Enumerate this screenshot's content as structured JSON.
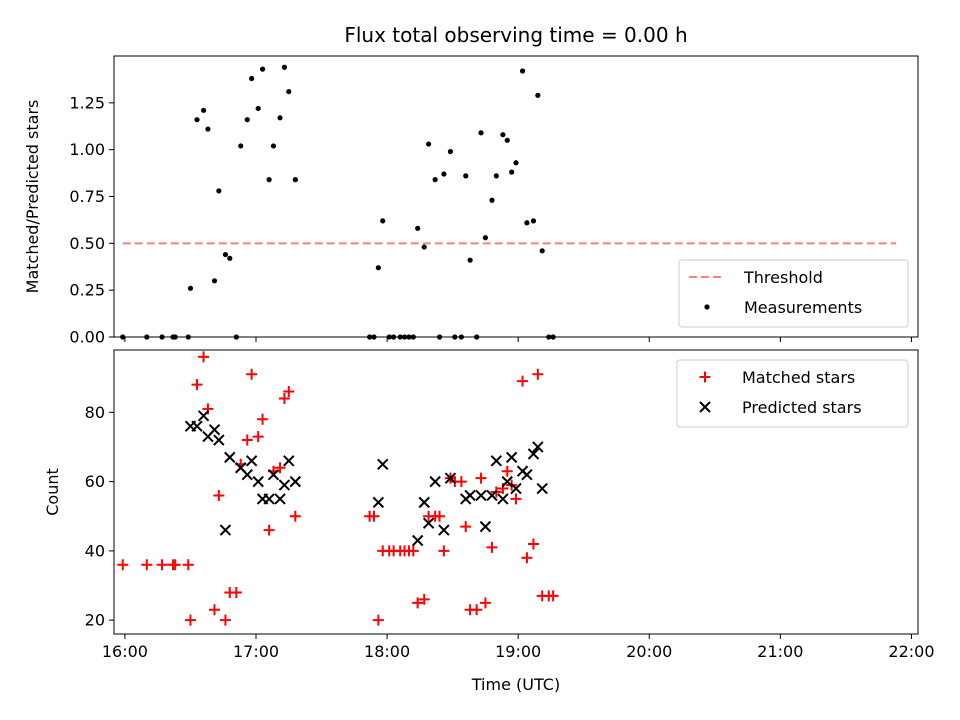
{
  "title": "Flux total observing time = 0.00 h",
  "xlabel": "Time (UTC)",
  "x_ticks": [
    "16:00",
    "17:00",
    "18:00",
    "19:00",
    "20:00",
    "21:00",
    "22:00"
  ],
  "colors": {
    "measurements": "#000000",
    "threshold": "#ff7f7f",
    "matched": "#ff0000",
    "predicted": "#000000"
  },
  "chart_data": [
    {
      "type": "scatter",
      "ylabel": "Matched/Predicted stars",
      "xlim": [
        "15:55",
        "22:03"
      ],
      "ylim": [
        0,
        1.5
      ],
      "y_ticks": [
        "0.00",
        "0.25",
        "0.50",
        "0.75",
        "1.00",
        "1.25"
      ],
      "legend_position": "lower-right",
      "threshold": {
        "name": "Threshold",
        "value": 0.5,
        "x": [
          "15:59",
          "21:53"
        ]
      },
      "series": [
        {
          "name": "Measurements",
          "marker": "dot",
          "points": [
            [
              "15:59",
              0.0
            ],
            [
              "16:10",
              0.0
            ],
            [
              "16:17",
              0.0
            ],
            [
              "16:22",
              0.0
            ],
            [
              "16:23",
              0.0
            ],
            [
              "16:29",
              0.0
            ],
            [
              "16:30",
              0.26
            ],
            [
              "16:33",
              1.16
            ],
            [
              "16:36",
              1.21
            ],
            [
              "16:38",
              1.11
            ],
            [
              "16:41",
              0.3
            ],
            [
              "16:43",
              0.78
            ],
            [
              "16:46",
              0.44
            ],
            [
              "16:48",
              0.42
            ],
            [
              "16:51",
              0.0
            ],
            [
              "16:53",
              1.02
            ],
            [
              "16:56",
              1.16
            ],
            [
              "16:58",
              1.38
            ],
            [
              "17:01",
              1.22
            ],
            [
              "17:03",
              1.43
            ],
            [
              "17:06",
              0.84
            ],
            [
              "17:08",
              1.02
            ],
            [
              "17:11",
              1.17
            ],
            [
              "17:13",
              1.44
            ],
            [
              "17:15",
              1.31
            ],
            [
              "17:18",
              0.84
            ],
            [
              "17:52",
              0.0
            ],
            [
              "17:54",
              0.0
            ],
            [
              "17:56",
              0.37
            ],
            [
              "17:58",
              0.62
            ],
            [
              "18:01",
              0.0
            ],
            [
              "18:03",
              0.0
            ],
            [
              "18:06",
              0.0
            ],
            [
              "18:08",
              0.0
            ],
            [
              "18:10",
              0.0
            ],
            [
              "18:12",
              0.0
            ],
            [
              "18:14",
              0.58
            ],
            [
              "18:17",
              0.48
            ],
            [
              "18:19",
              1.03
            ],
            [
              "18:22",
              0.84
            ],
            [
              "18:24",
              0.0
            ],
            [
              "18:26",
              0.87
            ],
            [
              "18:29",
              0.99
            ],
            [
              "18:31",
              0.0
            ],
            [
              "18:34",
              0.0
            ],
            [
              "18:36",
              0.86
            ],
            [
              "18:38",
              0.41
            ],
            [
              "18:41",
              0.0
            ],
            [
              "18:43",
              1.09
            ],
            [
              "18:45",
              0.53
            ],
            [
              "18:48",
              0.73
            ],
            [
              "18:50",
              0.86
            ],
            [
              "18:53",
              1.08
            ],
            [
              "18:55",
              1.05
            ],
            [
              "18:57",
              0.88
            ],
            [
              "18:59",
              0.93
            ],
            [
              "19:02",
              1.42
            ],
            [
              "19:04",
              0.61
            ],
            [
              "19:07",
              0.62
            ],
            [
              "19:09",
              1.29
            ],
            [
              "19:11",
              0.46
            ],
            [
              "19:14",
              0.0
            ],
            [
              "19:16",
              0.0
            ]
          ]
        }
      ]
    },
    {
      "type": "scatter",
      "ylabel": "Count",
      "xlim": [
        "15:55",
        "22:03"
      ],
      "ylim": [
        16,
        98
      ],
      "y_ticks": [
        "20",
        "40",
        "60",
        "80"
      ],
      "legend_position": "upper-right",
      "series": [
        {
          "name": "Matched stars",
          "marker": "plus",
          "points": [
            [
              "15:59",
              36
            ],
            [
              "16:10",
              36
            ],
            [
              "16:17",
              36
            ],
            [
              "16:22",
              36
            ],
            [
              "16:23",
              36
            ],
            [
              "16:29",
              36
            ],
            [
              "16:30",
              20
            ],
            [
              "16:33",
              88
            ],
            [
              "16:36",
              96
            ],
            [
              "16:38",
              81
            ],
            [
              "16:41",
              23
            ],
            [
              "16:43",
              56
            ],
            [
              "16:46",
              20
            ],
            [
              "16:48",
              28
            ],
            [
              "16:51",
              28
            ],
            [
              "16:53",
              65
            ],
            [
              "16:56",
              72
            ],
            [
              "16:58",
              91
            ],
            [
              "17:01",
              73
            ],
            [
              "17:03",
              78
            ],
            [
              "17:06",
              46
            ],
            [
              "17:08",
              63
            ],
            [
              "17:11",
              64
            ],
            [
              "17:13",
              84
            ],
            [
              "17:15",
              86
            ],
            [
              "17:18",
              50
            ],
            [
              "17:52",
              50
            ],
            [
              "17:54",
              50
            ],
            [
              "17:56",
              20
            ],
            [
              "17:58",
              40
            ],
            [
              "18:01",
              40
            ],
            [
              "18:03",
              40
            ],
            [
              "18:06",
              40
            ],
            [
              "18:08",
              40
            ],
            [
              "18:10",
              40
            ],
            [
              "18:12",
              40
            ],
            [
              "18:14",
              25
            ],
            [
              "18:17",
              26
            ],
            [
              "18:19",
              50
            ],
            [
              "18:22",
              50
            ],
            [
              "18:24",
              50
            ],
            [
              "18:26",
              40
            ],
            [
              "18:29",
              61
            ],
            [
              "18:31",
              60
            ],
            [
              "18:34",
              60
            ],
            [
              "18:36",
              47
            ],
            [
              "18:38",
              23
            ],
            [
              "18:41",
              23
            ],
            [
              "18:43",
              61
            ],
            [
              "18:45",
              25
            ],
            [
              "18:48",
              41
            ],
            [
              "18:50",
              57
            ],
            [
              "18:53",
              58
            ],
            [
              "18:55",
              63
            ],
            [
              "18:57",
              59
            ],
            [
              "18:59",
              55
            ],
            [
              "19:02",
              89
            ],
            [
              "19:04",
              38
            ],
            [
              "19:07",
              42
            ],
            [
              "19:09",
              91
            ],
            [
              "19:11",
              27
            ],
            [
              "19:14",
              27
            ],
            [
              "19:16",
              27
            ]
          ]
        },
        {
          "name": "Predicted stars",
          "marker": "cross",
          "points": [
            [
              "16:30",
              76
            ],
            [
              "16:33",
              76
            ],
            [
              "16:36",
              79
            ],
            [
              "16:38",
              73
            ],
            [
              "16:41",
              75
            ],
            [
              "16:43",
              72
            ],
            [
              "16:46",
              46
            ],
            [
              "16:48",
              67
            ],
            [
              "16:53",
              64
            ],
            [
              "16:56",
              62
            ],
            [
              "16:58",
              66
            ],
            [
              "17:01",
              60
            ],
            [
              "17:03",
              55
            ],
            [
              "17:06",
              55
            ],
            [
              "17:08",
              62
            ],
            [
              "17:11",
              55
            ],
            [
              "17:13",
              59
            ],
            [
              "17:15",
              66
            ],
            [
              "17:18",
              60
            ],
            [
              "17:56",
              54
            ],
            [
              "17:58",
              65
            ],
            [
              "18:14",
              43
            ],
            [
              "18:17",
              54
            ],
            [
              "18:19",
              48
            ],
            [
              "18:22",
              60
            ],
            [
              "18:26",
              46
            ],
            [
              "18:29",
              61
            ],
            [
              "18:36",
              55
            ],
            [
              "18:38",
              56
            ],
            [
              "18:43",
              56
            ],
            [
              "18:45",
              47
            ],
            [
              "18:48",
              56
            ],
            [
              "18:50",
              66
            ],
            [
              "18:53",
              55
            ],
            [
              "18:55",
              60
            ],
            [
              "18:57",
              67
            ],
            [
              "18:59",
              58
            ],
            [
              "19:02",
              63
            ],
            [
              "19:04",
              62
            ],
            [
              "19:07",
              68
            ],
            [
              "19:09",
              70
            ],
            [
              "19:11",
              58
            ]
          ]
        }
      ]
    }
  ]
}
